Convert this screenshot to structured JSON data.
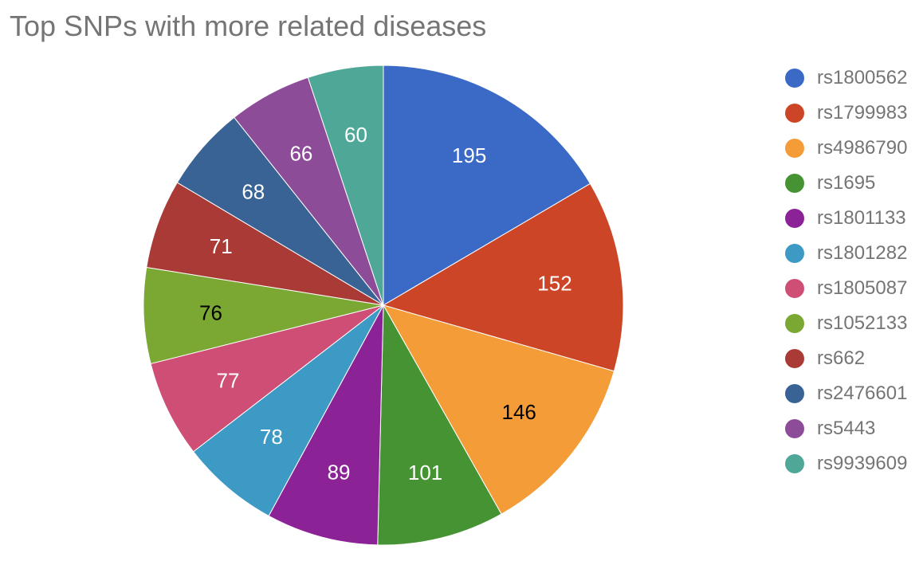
{
  "chart_data": {
    "type": "pie",
    "title": "Top SNPs with more related diseases",
    "legend_position": "right",
    "slices": [
      {
        "label": "rs1800562",
        "value": 195,
        "color": "#3a69c6",
        "text_color": "#ffffff"
      },
      {
        "label": "rs1799983",
        "value": 152,
        "color": "#cc4527",
        "text_color": "#ffffff"
      },
      {
        "label": "rs4986790",
        "value": 146,
        "color": "#f39c38",
        "text_color": "#000000"
      },
      {
        "label": "rs1695",
        "value": 101,
        "color": "#459332",
        "text_color": "#ffffff"
      },
      {
        "label": "rs1801133",
        "value": 89,
        "color": "#8b2295",
        "text_color": "#ffffff"
      },
      {
        "label": "rs1801282",
        "value": 78,
        "color": "#3d9ac4",
        "text_color": "#ffffff"
      },
      {
        "label": "rs1805087",
        "value": 77,
        "color": "#cf4e76",
        "text_color": "#ffffff"
      },
      {
        "label": "rs1052133",
        "value": 76,
        "color": "#7ba733",
        "text_color": "#000000"
      },
      {
        "label": "rs662",
        "value": 71,
        "color": "#a93a35",
        "text_color": "#ffffff"
      },
      {
        "label": "rs2476601",
        "value": 68,
        "color": "#386394",
        "text_color": "#ffffff"
      },
      {
        "label": "rs5443",
        "value": 66,
        "color": "#8c4c98",
        "text_color": "#ffffff"
      },
      {
        "label": "rs9939609",
        "value": 60,
        "color": "#4fa798",
        "text_color": "#ffffff"
      }
    ]
  }
}
